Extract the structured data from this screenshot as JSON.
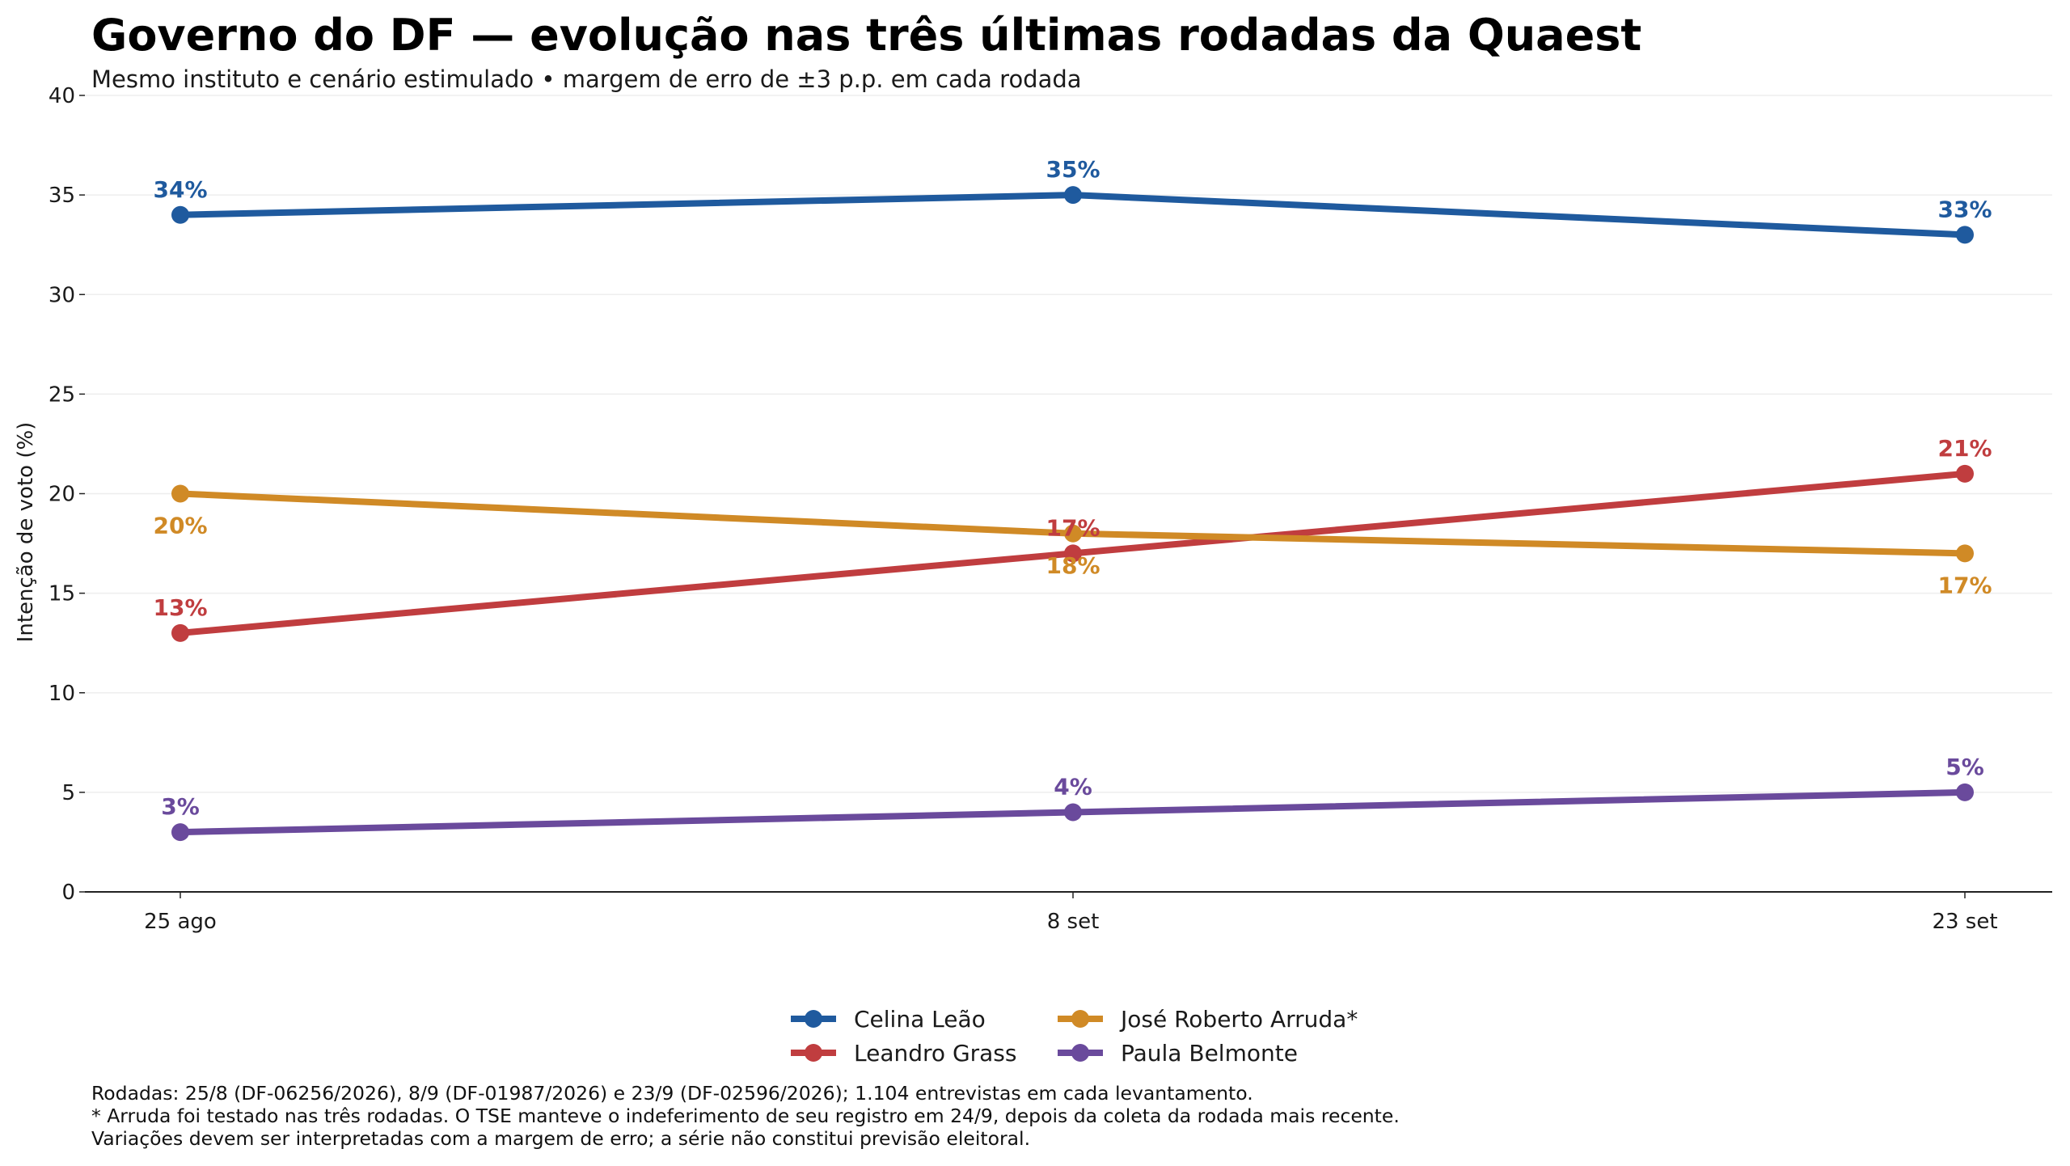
{
  "chart_data": {
    "type": "line",
    "title": "Governo do DF — evolução nas três últimas rodadas da Quaest",
    "subtitle": "Mesmo instituto e cenário estimulado • margem de erro de ±3 p.p. em cada rodada",
    "ylabel": "Intenção de voto (%)",
    "xlabel": "",
    "x": [
      "25 ago",
      "8 set",
      "23 set"
    ],
    "ylim": [
      0,
      40
    ],
    "yticks": [
      0,
      5,
      10,
      15,
      20,
      25,
      30,
      35,
      40
    ],
    "grid": "horizontal",
    "legend_position": "bottom-center",
    "series": [
      {
        "name": "Celina Leão",
        "color": "#1f5a9e",
        "values": [
          34,
          35,
          33
        ],
        "labels": [
          "34%",
          "35%",
          "33%"
        ],
        "label_positions": [
          "above",
          "above",
          "above"
        ]
      },
      {
        "name": "Leandro Grass",
        "color": "#c03d3f",
        "values": [
          13,
          17,
          21
        ],
        "labels": [
          "13%",
          "17%",
          "21%"
        ],
        "label_positions": [
          "above",
          "above",
          "above"
        ]
      },
      {
        "name": "José Roberto Arruda*",
        "color": "#d08a26",
        "values": [
          20,
          18,
          17
        ],
        "labels": [
          "20%",
          "18%",
          "17%"
        ],
        "label_positions": [
          "below",
          "below",
          "below"
        ]
      },
      {
        "name": "Paula Belmonte",
        "color": "#6a4a9c",
        "values": [
          3,
          4,
          5
        ],
        "labels": [
          "3%",
          "4%",
          "5%"
        ],
        "label_positions": [
          "above",
          "above",
          "above"
        ]
      }
    ],
    "legend_order": [
      "Celina Leão",
      "Leandro Grass",
      "José Roberto Arruda*",
      "Paula Belmonte"
    ]
  },
  "footnotes": [
    "Rodadas: 25/8 (DF-06256/2026), 8/9 (DF-01987/2026) e 23/9 (DF-02596/2026); 1.104 entrevistas em cada levantamento.",
    "* Arruda foi testado nas três rodadas. O TSE manteve o indeferimento de seu registro em 24/9, depois da coleta da rodada mais recente.",
    "Variações devem ser interpretadas com a margem de erro; a série não constitui previsão eleitoral."
  ]
}
